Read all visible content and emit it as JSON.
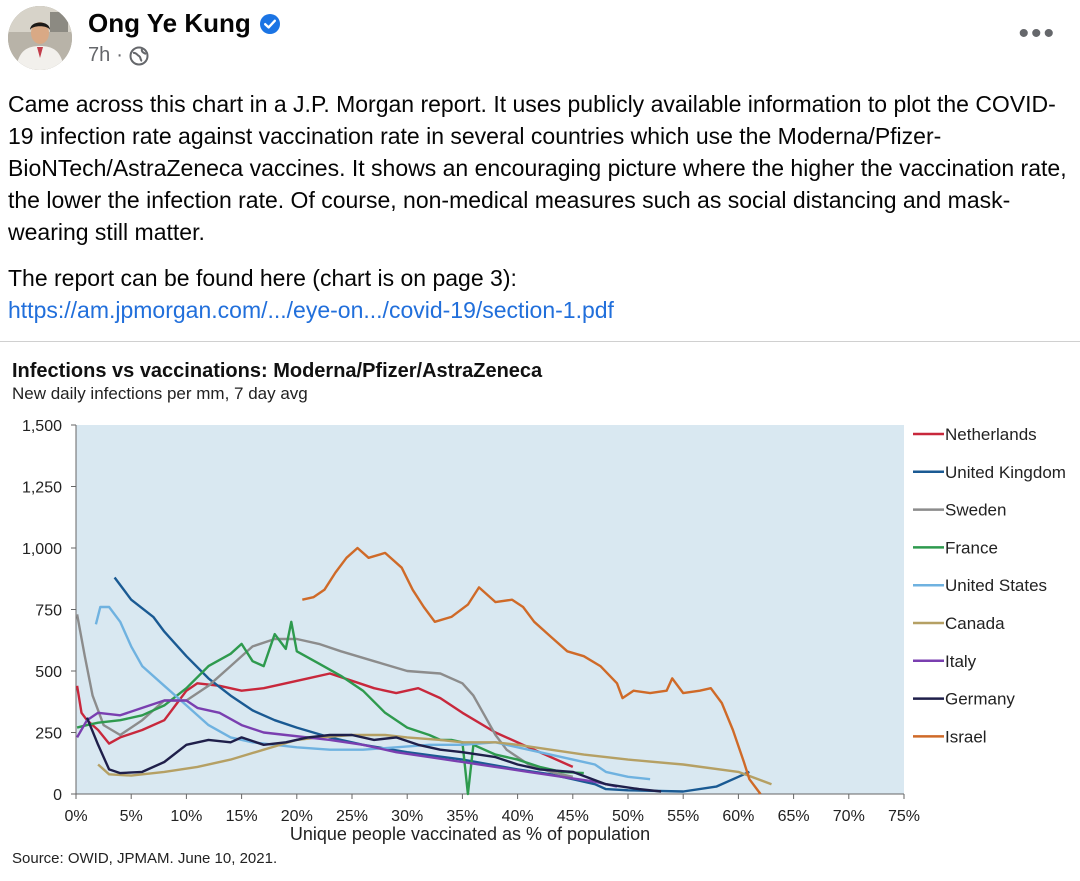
{
  "post": {
    "author": "Ong Ye Kung",
    "time": "7h",
    "paragraph1": "Came across this chart in a J.P. Morgan report. It uses publicly available information to plot the COVID-19 infection rate against vaccination rate in several countries which use the Moderna/Pfizer-BioNTech/AstraZeneca vaccines. It shows an encouraging picture where the higher the vaccination rate, the lower the infection rate. Of course, non-medical measures such as social distancing and mask-wearing still matter.",
    "paragraph2": "The report can be found here (chart is on page 3):",
    "link": "https://am.jpmorgan.com/.../eye-on.../covid-19/section-1.pdf"
  },
  "chart_data": {
    "type": "line",
    "title": "Infections vs vaccinations: Moderna/Pfizer/AstraZeneca",
    "subtitle": "New daily infections per mm, 7 day avg",
    "xlabel": "Unique people vaccinated as % of population",
    "source": "Source: OWID, JPMAM. June 10, 2021.",
    "xlim": [
      0,
      75
    ],
    "ylim": [
      0,
      1500
    ],
    "xticks": [
      0,
      5,
      10,
      15,
      20,
      25,
      30,
      35,
      40,
      45,
      50,
      55,
      60,
      65,
      70,
      75
    ],
    "xtick_labels": [
      "0%",
      "5%",
      "10%",
      "15%",
      "20%",
      "25%",
      "30%",
      "35%",
      "40%",
      "45%",
      "50%",
      "55%",
      "60%",
      "65%",
      "70%",
      "75%"
    ],
    "yticks": [
      0,
      250,
      500,
      750,
      1000,
      1250,
      1500
    ],
    "ytick_labels": [
      "0",
      "250",
      "500",
      "750",
      "1,000",
      "1,250",
      "1,500"
    ],
    "series": [
      {
        "name": "Netherlands",
        "color": "#c8283c",
        "points": [
          [
            0.1,
            440
          ],
          [
            0.5,
            330
          ],
          [
            1,
            300
          ],
          [
            2,
            260
          ],
          [
            3,
            205
          ],
          [
            4,
            230
          ],
          [
            6,
            260
          ],
          [
            8,
            300
          ],
          [
            9,
            360
          ],
          [
            10,
            420
          ],
          [
            11,
            450
          ],
          [
            13,
            440
          ],
          [
            15,
            420
          ],
          [
            17,
            430
          ],
          [
            19,
            450
          ],
          [
            21,
            470
          ],
          [
            23,
            490
          ],
          [
            25,
            460
          ],
          [
            27,
            430
          ],
          [
            29,
            410
          ],
          [
            31,
            430
          ],
          [
            33,
            390
          ],
          [
            35,
            330
          ],
          [
            38,
            250
          ],
          [
            41,
            190
          ],
          [
            44,
            130
          ],
          [
            45,
            110
          ]
        ]
      },
      {
        "name": "United Kingdom",
        "color": "#1a5a93",
        "points": [
          [
            3.5,
            880
          ],
          [
            5,
            790
          ],
          [
            7,
            720
          ],
          [
            8,
            660
          ],
          [
            10,
            560
          ],
          [
            12,
            470
          ],
          [
            14,
            400
          ],
          [
            16,
            340
          ],
          [
            18,
            300
          ],
          [
            20,
            270
          ],
          [
            23,
            230
          ],
          [
            26,
            200
          ],
          [
            30,
            170
          ],
          [
            35,
            140
          ],
          [
            40,
            100
          ],
          [
            43,
            80
          ],
          [
            45,
            60
          ],
          [
            47,
            40
          ],
          [
            48,
            20
          ],
          [
            50,
            15
          ],
          [
            55,
            10
          ],
          [
            58,
            30
          ],
          [
            60,
            70
          ],
          [
            61,
            90
          ]
        ]
      },
      {
        "name": "Sweden",
        "color": "#8c8c8c",
        "points": [
          [
            0.1,
            730
          ],
          [
            0.8,
            560
          ],
          [
            1.5,
            400
          ],
          [
            2.5,
            280
          ],
          [
            4,
            240
          ],
          [
            6,
            300
          ],
          [
            8,
            380
          ],
          [
            10,
            380
          ],
          [
            12,
            440
          ],
          [
            14,
            520
          ],
          [
            16,
            600
          ],
          [
            18,
            630
          ],
          [
            20,
            630
          ],
          [
            22,
            610
          ],
          [
            24,
            580
          ],
          [
            27,
            540
          ],
          [
            30,
            500
          ],
          [
            33,
            490
          ],
          [
            35,
            450
          ],
          [
            36,
            400
          ],
          [
            37,
            320
          ],
          [
            38,
            240
          ],
          [
            39,
            180
          ],
          [
            41,
            120
          ],
          [
            43,
            90
          ],
          [
            45,
            70
          ]
        ]
      },
      {
        "name": "France",
        "color": "#2e9a4e",
        "points": [
          [
            0.1,
            270
          ],
          [
            1,
            280
          ],
          [
            2,
            290
          ],
          [
            4,
            300
          ],
          [
            6,
            320
          ],
          [
            8,
            360
          ],
          [
            10,
            430
          ],
          [
            12,
            520
          ],
          [
            14,
            570
          ],
          [
            15,
            610
          ],
          [
            16,
            540
          ],
          [
            17,
            520
          ],
          [
            18,
            650
          ],
          [
            19,
            590
          ],
          [
            19.5,
            700
          ],
          [
            20,
            580
          ],
          [
            22,
            530
          ],
          [
            24,
            480
          ],
          [
            26,
            420
          ],
          [
            28,
            330
          ],
          [
            30,
            270
          ],
          [
            32,
            240
          ],
          [
            33,
            220
          ],
          [
            34,
            220
          ],
          [
            35,
            210
          ],
          [
            35.5,
            0
          ],
          [
            36,
            200
          ],
          [
            38,
            160
          ],
          [
            40,
            140
          ],
          [
            42,
            110
          ],
          [
            44,
            90
          ],
          [
            46,
            85
          ]
        ]
      },
      {
        "name": "United States",
        "color": "#6fb2e0",
        "points": [
          [
            1.8,
            690
          ],
          [
            2.2,
            760
          ],
          [
            3,
            760
          ],
          [
            4,
            700
          ],
          [
            5,
            600
          ],
          [
            6,
            520
          ],
          [
            8,
            440
          ],
          [
            10,
            360
          ],
          [
            12,
            280
          ],
          [
            14,
            230
          ],
          [
            16,
            210
          ],
          [
            18,
            200
          ],
          [
            20,
            190
          ],
          [
            23,
            180
          ],
          [
            26,
            180
          ],
          [
            29,
            190
          ],
          [
            32,
            200
          ],
          [
            35,
            200
          ],
          [
            38,
            210
          ],
          [
            40,
            190
          ],
          [
            42,
            170
          ],
          [
            45,
            140
          ],
          [
            47,
            120
          ],
          [
            48,
            90
          ],
          [
            50,
            70
          ],
          [
            52,
            60
          ]
        ]
      },
      {
        "name": "Canada",
        "color": "#b5a064",
        "points": [
          [
            2,
            120
          ],
          [
            3,
            80
          ],
          [
            5,
            75
          ],
          [
            8,
            90
          ],
          [
            11,
            110
          ],
          [
            14,
            140
          ],
          [
            17,
            180
          ],
          [
            20,
            220
          ],
          [
            22,
            230
          ],
          [
            25,
            240
          ],
          [
            28,
            240
          ],
          [
            30,
            230
          ],
          [
            33,
            220
          ],
          [
            35,
            210
          ],
          [
            38,
            210
          ],
          [
            40,
            200
          ],
          [
            43,
            180
          ],
          [
            46,
            160
          ],
          [
            50,
            140
          ],
          [
            55,
            120
          ],
          [
            60,
            90
          ],
          [
            63,
            40
          ]
        ]
      },
      {
        "name": "Italy",
        "color": "#7a3fb0",
        "points": [
          [
            0.1,
            230
          ],
          [
            1,
            300
          ],
          [
            2,
            330
          ],
          [
            4,
            320
          ],
          [
            6,
            350
          ],
          [
            8,
            380
          ],
          [
            10,
            380
          ],
          [
            11,
            350
          ],
          [
            13,
            330
          ],
          [
            15,
            280
          ],
          [
            17,
            250
          ],
          [
            19,
            240
          ],
          [
            21,
            230
          ],
          [
            23,
            220
          ],
          [
            26,
            200
          ],
          [
            29,
            170
          ],
          [
            32,
            150
          ],
          [
            35,
            130
          ],
          [
            38,
            110
          ],
          [
            41,
            90
          ],
          [
            44,
            70
          ],
          [
            47,
            50
          ],
          [
            49,
            30
          ]
        ]
      },
      {
        "name": "Germany",
        "color": "#1f1f4a",
        "points": [
          [
            1,
            310
          ],
          [
            2,
            200
          ],
          [
            3,
            100
          ],
          [
            4,
            85
          ],
          [
            6,
            90
          ],
          [
            8,
            130
          ],
          [
            10,
            200
          ],
          [
            12,
            220
          ],
          [
            14,
            210
          ],
          [
            15,
            230
          ],
          [
            17,
            200
          ],
          [
            19,
            210
          ],
          [
            21,
            230
          ],
          [
            23,
            240
          ],
          [
            25,
            240
          ],
          [
            27,
            220
          ],
          [
            29,
            230
          ],
          [
            31,
            200
          ],
          [
            33,
            180
          ],
          [
            35,
            170
          ],
          [
            38,
            150
          ],
          [
            40,
            120
          ],
          [
            42,
            100
          ],
          [
            45,
            90
          ],
          [
            48,
            40
          ],
          [
            51,
            20
          ],
          [
            53,
            10
          ]
        ]
      },
      {
        "name": "Israel",
        "color": "#cf6a28",
        "points": [
          [
            20.5,
            790
          ],
          [
            21.5,
            800
          ],
          [
            22.5,
            830
          ],
          [
            23.5,
            900
          ],
          [
            24.5,
            960
          ],
          [
            25.5,
            1000
          ],
          [
            26.5,
            960
          ],
          [
            28,
            980
          ],
          [
            29.5,
            920
          ],
          [
            30.5,
            830
          ],
          [
            31.5,
            760
          ],
          [
            32.5,
            700
          ],
          [
            34,
            720
          ],
          [
            35.5,
            770
          ],
          [
            36.5,
            840
          ],
          [
            38,
            780
          ],
          [
            39.5,
            790
          ],
          [
            40.5,
            760
          ],
          [
            41.5,
            700
          ],
          [
            43,
            640
          ],
          [
            44.5,
            580
          ],
          [
            46,
            560
          ],
          [
            47.5,
            520
          ],
          [
            49,
            450
          ],
          [
            49.5,
            390
          ],
          [
            50.5,
            420
          ],
          [
            52,
            410
          ],
          [
            53.5,
            420
          ],
          [
            54,
            470
          ],
          [
            55,
            410
          ],
          [
            56.5,
            420
          ],
          [
            57.5,
            430
          ],
          [
            58.5,
            370
          ],
          [
            59.5,
            260
          ],
          [
            60.5,
            130
          ],
          [
            61,
            60
          ],
          [
            62,
            0
          ]
        ]
      }
    ]
  }
}
